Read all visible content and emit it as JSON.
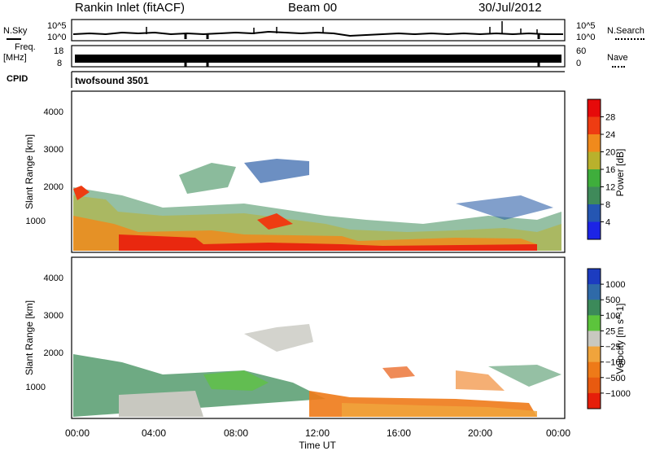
{
  "header": {
    "station": "Rankin Inlet (fitACF)",
    "beam": "Beam 00",
    "date": "30/Jul/2012"
  },
  "top_panels": {
    "nsky": {
      "label": "N.Sky",
      "scale_hi": "10^5",
      "scale_lo": "10^0"
    },
    "nsearch": {
      "label": "N.Search",
      "scale_hi": "10^5",
      "scale_lo": "10^0"
    },
    "freq": {
      "label_1": "Freq.",
      "label_2": "[MHz]",
      "hi": "18",
      "lo": "8"
    },
    "nave": {
      "label": "Nave",
      "hi": "60",
      "lo": "0"
    },
    "cpid": {
      "label": "CPID",
      "value": "twofsound 3501"
    }
  },
  "chart_data": [
    {
      "type": "heatmap",
      "title": "",
      "xlabel": "",
      "ylabel": "Slant Range [km]",
      "ylim": [
        180,
        4500
      ],
      "yticks": [
        "1000",
        "2000",
        "3000",
        "4000"
      ],
      "colorbar": {
        "label": "Power [dB]",
        "ticks": [
          "4",
          "8",
          "12",
          "16",
          "20",
          "24",
          "28"
        ],
        "colors": [
          "#1c24e6",
          "#2556b2",
          "#3f8a5a",
          "#3fae3c",
          "#b9b12c",
          "#f08a1c",
          "#ee3c12",
          "#e60a0a"
        ]
      }
    },
    {
      "type": "heatmap",
      "title": "",
      "xlabel": "Time UT",
      "ylabel": "Slant Range [km]",
      "ylim": [
        180,
        4500
      ],
      "yticks": [
        "1000",
        "2000",
        "3000",
        "4000"
      ],
      "xticks": [
        "00:00",
        "04:00",
        "08:00",
        "12:00",
        "16:00",
        "20:00",
        "00:00"
      ],
      "colorbar": {
        "label": "Velocity [m s^-1]",
        "ticks": [
          "1000",
          "500",
          "100",
          "25",
          "-25",
          "-100",
          "-500",
          "-1000"
        ],
        "colors": [
          "#1c3cc0",
          "#2f6aa8",
          "#3c8a5a",
          "#5cc43c",
          "#c8c8c0",
          "#f0a43c",
          "#ee7a18",
          "#e85a10",
          "#e61e0a"
        ]
      }
    }
  ]
}
